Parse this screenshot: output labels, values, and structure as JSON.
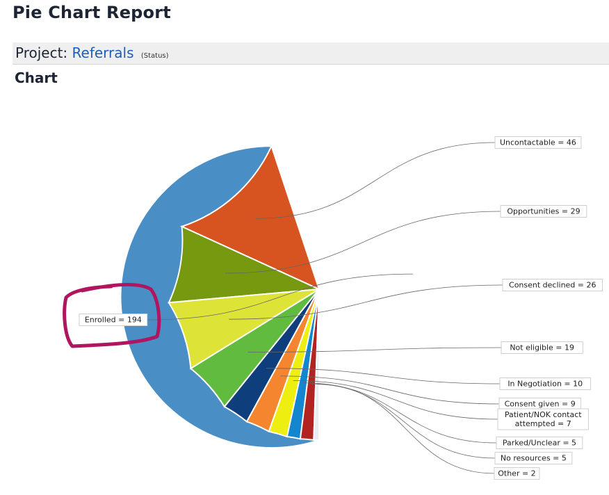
{
  "header": {
    "page_title": "Pie Chart Report",
    "project_prefix": "Project:",
    "project_name": "Referrals",
    "project_note": "(Status)",
    "section_title": "Chart"
  },
  "annotation": {
    "shape": "hand-drawn-loop",
    "color": "#b0165f",
    "target": "Enrolled = 194"
  },
  "chart_data": {
    "type": "pie",
    "title": "",
    "slices": [
      {
        "label": "Enrolled = 194",
        "name": "Enrolled",
        "value": 194,
        "color": "#4a8ec6"
      },
      {
        "label": "Uncontactable = 46",
        "name": "Uncontactable",
        "value": 46,
        "color": "#d75420"
      },
      {
        "label": "Opportunities = 29",
        "name": "Opportunities",
        "value": 29,
        "color": "#76990f"
      },
      {
        "label": "Consent declined = 26",
        "name": "Consent declined",
        "value": 26,
        "color": "#dde437"
      },
      {
        "label": "Not eligible = 19",
        "name": "Not eligible",
        "value": 19,
        "color": "#60bb3f"
      },
      {
        "label": "In Negotiation = 10",
        "name": "In Negotiation",
        "value": 10,
        "color": "#0f3e7c"
      },
      {
        "label": "Consent given = 9",
        "name": "Consent given",
        "value": 9,
        "color": "#f5852f"
      },
      {
        "label": "Patient/NOK contact attempted = 7",
        "name": "Patient/NOK contact attempted",
        "value": 7,
        "color": "#eeee10"
      },
      {
        "label": "Parked/Unclear = 5",
        "name": "Parked/Unclear",
        "value": 5,
        "color": "#1486cf"
      },
      {
        "label": "No resources = 5",
        "name": "No resources",
        "value": 5,
        "color": "#b12421"
      },
      {
        "label": "Other = 2",
        "name": "Other",
        "value": 2,
        "color": "#e8eef2"
      }
    ]
  }
}
